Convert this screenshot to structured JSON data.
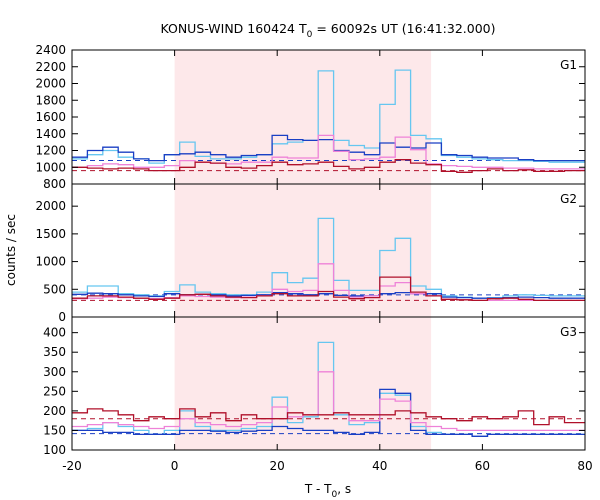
{
  "title": {
    "prefix": "KONUS-WIND 160424 T",
    "sub": "0",
    "suffix": " = 60092s UT (16:41:32.000)"
  },
  "xlabel": {
    "prefix": "T - T",
    "sub": "0",
    "suffix": ", s"
  },
  "ylabel": "counts / sec",
  "colors": {
    "light_blue": "#66c6f0",
    "dark_blue": "#1a3fc4",
    "dark_red": "#b0102a",
    "pink": "#ee82d8",
    "highlight": "#fde8ea"
  },
  "chart_data": {
    "type": "line",
    "x": {
      "range": [
        -20,
        80
      ],
      "ticks": [
        -20,
        0,
        20,
        40,
        60,
        80
      ],
      "highlight": [
        0,
        50
      ]
    },
    "panels": [
      {
        "label": "G1",
        "ylim": [
          800,
          2400
        ],
        "yticks": [
          800,
          1000,
          1200,
          1400,
          1600,
          1800,
          2000,
          2200,
          2400
        ],
        "background": {
          "blue": 1080,
          "red": 960
        },
        "series": [
          {
            "color": "light_blue",
            "edges": [
              -20,
              -17,
              -14,
              -11,
              -8,
              -5,
              -2,
              1,
              4,
              7,
              10,
              13,
              16,
              19,
              22,
              25,
              28,
              31,
              34,
              37,
              40,
              43,
              46,
              49,
              52,
              55,
              58,
              61,
              64,
              67,
              70,
              73,
              76,
              80
            ],
            "values": [
              1100,
              1150,
              1200,
              1120,
              1100,
              1050,
              1150,
              1300,
              1130,
              1100,
              1100,
              1120,
              1150,
              1280,
              1300,
              1320,
              2150,
              1320,
              1260,
              1230,
              1750,
              2160,
              1380,
              1340,
              1140,
              1120,
              1100,
              1090,
              1080,
              1080,
              1070,
              1060,
              1060
            ]
          },
          {
            "color": "dark_blue",
            "edges": [
              -20,
              -17,
              -14,
              -11,
              -8,
              -5,
              -2,
              1,
              4,
              7,
              10,
              13,
              16,
              19,
              22,
              25,
              28,
              31,
              34,
              37,
              40,
              43,
              46,
              49,
              52,
              55,
              58,
              61,
              64,
              67,
              70,
              73,
              76,
              80
            ],
            "values": [
              1120,
              1200,
              1240,
              1180,
              1100,
              1080,
              1150,
              1160,
              1180,
              1150,
              1120,
              1140,
              1150,
              1380,
              1330,
              1320,
              1330,
              1200,
              1180,
              1150,
              1290,
              1240,
              1230,
              1290,
              1150,
              1140,
              1120,
              1110,
              1110,
              1090,
              1080,
              1080,
              1080
            ]
          },
          {
            "color": "pink",
            "edges": [
              -20,
              -17,
              -14,
              -11,
              -8,
              -5,
              -2,
              1,
              4,
              7,
              10,
              13,
              16,
              19,
              22,
              25,
              28,
              31,
              34,
              37,
              40,
              43,
              46,
              49,
              52,
              55,
              58,
              61,
              64,
              67,
              70,
              73,
              76,
              80
            ],
            "values": [
              1000,
              1020,
              1040,
              1030,
              1000,
              1000,
              1020,
              1080,
              1060,
              1050,
              1040,
              1060,
              1060,
              1120,
              1110,
              1110,
              1380,
              1190,
              1090,
              1100,
              1120,
              1360,
              1210,
              1040,
              1020,
              1010,
              1000,
              1000,
              990,
              990,
              980,
              980,
              980
            ]
          },
          {
            "color": "dark_red",
            "edges": [
              -20,
              -17,
              -14,
              -11,
              -8,
              -5,
              -2,
              1,
              4,
              7,
              10,
              13,
              16,
              19,
              22,
              25,
              28,
              31,
              34,
              37,
              40,
              43,
              46,
              49,
              52,
              55,
              58,
              61,
              64,
              67,
              70,
              73,
              76,
              80
            ],
            "values": [
              1000,
              990,
              980,
              990,
              980,
              960,
              960,
              1000,
              1060,
              1050,
              1000,
              990,
              1020,
              1060,
              1030,
              1040,
              1060,
              1010,
              980,
              1000,
              1060,
              1090,
              1050,
              1030,
              950,
              940,
              960,
              980,
              960,
              970,
              950,
              950,
              960
            ]
          }
        ]
      },
      {
        "label": "G2",
        "ylim": [
          0,
          2400
        ],
        "yticks": [
          0,
          500,
          1000,
          1500,
          2000
        ],
        "background": {
          "blue": 400,
          "red": 300
        },
        "series": [
          {
            "color": "light_blue",
            "edges": [
              -20,
              -17,
              -14,
              -11,
              -8,
              -5,
              -2,
              1,
              4,
              7,
              10,
              13,
              16,
              19,
              22,
              25,
              28,
              31,
              34,
              37,
              40,
              43,
              46,
              49,
              52,
              55,
              58,
              61,
              64,
              67,
              70,
              73,
              76,
              80
            ],
            "values": [
              450,
              560,
              560,
              420,
              400,
              380,
              460,
              580,
              450,
              420,
              400,
              400,
              450,
              800,
              620,
              700,
              1780,
              660,
              480,
              480,
              1200,
              1420,
              560,
              500,
              380,
              360,
              340,
              350,
              380,
              400,
              390,
              380,
              380
            ]
          },
          {
            "color": "dark_blue",
            "edges": [
              -20,
              -17,
              -14,
              -11,
              -8,
              -5,
              -2,
              1,
              4,
              7,
              10,
              13,
              16,
              19,
              22,
              25,
              28,
              31,
              34,
              37,
              40,
              43,
              46,
              49,
              52,
              55,
              58,
              61,
              64,
              67,
              70,
              73,
              76,
              80
            ],
            "values": [
              410,
              430,
              420,
              400,
              380,
              370,
              420,
              400,
              410,
              400,
              380,
              390,
              400,
              440,
              420,
              400,
              420,
              390,
              380,
              380,
              420,
              440,
              420,
              420,
              360,
              350,
              340,
              340,
              350,
              360,
              350,
              340,
              340
            ]
          },
          {
            "color": "pink",
            "edges": [
              -20,
              -17,
              -14,
              -11,
              -8,
              -5,
              -2,
              1,
              4,
              7,
              10,
              13,
              16,
              19,
              22,
              25,
              28,
              31,
              34,
              37,
              40,
              43,
              46,
              49,
              52,
              55,
              58,
              61,
              64,
              67,
              70,
              73,
              76,
              80
            ],
            "values": [
              330,
              340,
              360,
              350,
              340,
              330,
              350,
              380,
              370,
              360,
              350,
              360,
              380,
              500,
              460,
              480,
              960,
              480,
              360,
              380,
              560,
              620,
              420,
              380,
              320,
              310,
              300,
              300,
              300,
              300,
              300,
              300,
              300
            ]
          },
          {
            "color": "dark_red",
            "edges": [
              -20,
              -17,
              -14,
              -11,
              -8,
              -5,
              -2,
              1,
              4,
              7,
              10,
              13,
              16,
              19,
              22,
              25,
              28,
              31,
              34,
              37,
              40,
              43,
              46,
              49,
              52,
              55,
              58,
              61,
              64,
              67,
              70,
              73,
              76,
              80
            ],
            "values": [
              340,
              380,
              380,
              360,
              340,
              320,
              340,
              400,
              410,
              380,
              360,
              350,
              380,
              420,
              380,
              380,
              460,
              360,
              330,
              350,
              720,
              720,
              450,
              380,
              320,
              310,
              300,
              330,
              340,
              320,
              300,
              300,
              300
            ]
          }
        ]
      },
      {
        "label": "G3",
        "ylim": [
          100,
          440
        ],
        "yticks": [
          100,
          150,
          200,
          250,
          300,
          350,
          400
        ],
        "background": {
          "blue": 142,
          "red": 180
        },
        "series": [
          {
            "color": "light_blue",
            "edges": [
              -20,
              -17,
              -14,
              -11,
              -8,
              -5,
              -2,
              1,
              4,
              7,
              10,
              13,
              16,
              19,
              22,
              25,
              28,
              31,
              34,
              37,
              40,
              43,
              46,
              49,
              52,
              55,
              58,
              61,
              64,
              67,
              70,
              73,
              76,
              80
            ],
            "values": [
              150,
              155,
              170,
              160,
              150,
              140,
              150,
              200,
              160,
              150,
              150,
              155,
              160,
              235,
              170,
              185,
              375,
              190,
              165,
              170,
              245,
              240,
              160,
              145,
              140,
              140,
              135,
              140,
              140,
              140,
              140,
              140,
              140
            ]
          },
          {
            "color": "dark_blue",
            "edges": [
              -20,
              -17,
              -14,
              -11,
              -8,
              -5,
              -2,
              1,
              4,
              7,
              10,
              13,
              16,
              19,
              22,
              25,
              28,
              31,
              34,
              37,
              40,
              43,
              46,
              49,
              52,
              55,
              58,
              61,
              64,
              67,
              70,
              73,
              76,
              80
            ],
            "values": [
              150,
              150,
              145,
              145,
              140,
              140,
              140,
              150,
              150,
              148,
              145,
              148,
              150,
              160,
              155,
              150,
              150,
              145,
              140,
              145,
              255,
              245,
              150,
              140,
              140,
              140,
              135,
              140,
              140,
              140,
              140,
              140,
              140
            ]
          },
          {
            "color": "pink",
            "edges": [
              -20,
              -17,
              -14,
              -11,
              -8,
              -5,
              -2,
              1,
              4,
              7,
              10,
              13,
              16,
              19,
              22,
              25,
              28,
              31,
              34,
              37,
              40,
              43,
              46,
              49,
              52,
              55,
              58,
              61,
              64,
              67,
              70,
              73,
              76,
              80
            ],
            "values": [
              160,
              165,
              170,
              165,
              160,
              155,
              160,
              180,
              170,
              165,
              160,
              165,
              170,
              210,
              185,
              190,
              300,
              195,
              175,
              175,
              230,
              225,
              170,
              160,
              155,
              150,
              150,
              150,
              150,
              150,
              150,
              150,
              150
            ]
          },
          {
            "color": "dark_red",
            "edges": [
              -20,
              -17,
              -14,
              -11,
              -8,
              -5,
              -2,
              1,
              4,
              7,
              10,
              13,
              16,
              19,
              22,
              25,
              28,
              31,
              34,
              37,
              40,
              43,
              46,
              49,
              52,
              55,
              58,
              61,
              64,
              67,
              70,
              73,
              76,
              80
            ],
            "values": [
              195,
              205,
              200,
              190,
              175,
              185,
              180,
              205,
              185,
              195,
              175,
              190,
              180,
              180,
              195,
              190,
              190,
              195,
              190,
              190,
              190,
              200,
              195,
              185,
              180,
              175,
              185,
              180,
              185,
              200,
              165,
              185,
              170
            ]
          }
        ]
      }
    ]
  }
}
